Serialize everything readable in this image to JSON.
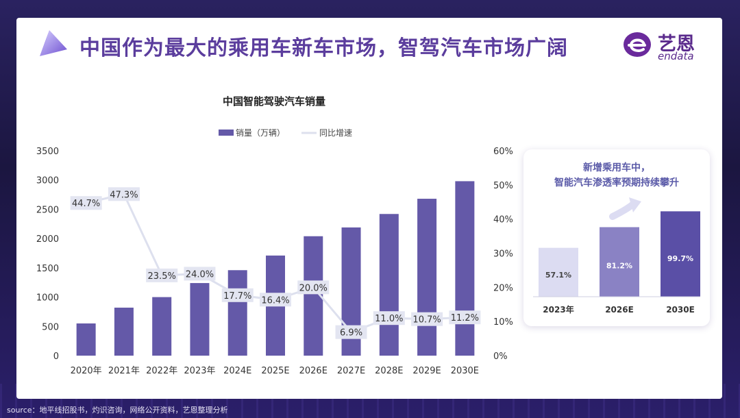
{
  "slide": {
    "title": "中国作为最大的乘用车新车市场，智驾汽车市场广阔",
    "logo_cn": "艺恩",
    "logo_en": "endata",
    "source": "source：地平线招股书，灼识咨询，网络公开资料，艺恩整理分析"
  },
  "colors": {
    "bar": "#6459a8",
    "line": "#dde0ee",
    "label_bg": "#e3e5f1",
    "title": "#5b3d9d",
    "axis_text": "#333333",
    "inset_bar_light": "#dcdcf2",
    "inset_bar_mid": "#8a82c4",
    "inset_bar_dark": "#5a4fa6"
  },
  "chart_data": [
    {
      "type": "bar",
      "title": "中国智能驾驶汽车销量",
      "categories": [
        "2020年",
        "2021年",
        "2022年",
        "2023年",
        "2024E",
        "2025E",
        "2026E",
        "2027E",
        "2028E",
        "2029E",
        "2030E"
      ],
      "series": [
        {
          "name": "销量（万辆）",
          "type": "bar",
          "axis": "left",
          "values": [
            550,
            820,
            1000,
            1240,
            1460,
            1710,
            2040,
            2190,
            2420,
            2680,
            2980
          ]
        },
        {
          "name": "同比增速",
          "type": "line",
          "axis": "right",
          "values": [
            44.7,
            47.3,
            23.5,
            24.0,
            17.7,
            16.4,
            20.0,
            6.9,
            11.0,
            10.7,
            11.2
          ],
          "labels": [
            "44.7%",
            "47.3%",
            "23.5%",
            "24.0%",
            "17.7%",
            "16.4%",
            "20.0%",
            "6.9%",
            "11.0%",
            "10.7%",
            "11.2%"
          ]
        }
      ],
      "ylim_left": [
        0,
        3500
      ],
      "yticks_left": [
        "0",
        "500",
        "1000",
        "1500",
        "2000",
        "2500",
        "3000",
        "3500"
      ],
      "ylim_right": [
        0,
        60
      ],
      "yticks_right": [
        "0%",
        "10%",
        "20%",
        "30%",
        "40%",
        "50%",
        "60%"
      ],
      "legend": [
        "销量（万辆）",
        "同比增速"
      ],
      "legend_position": "top"
    },
    {
      "type": "bar",
      "title_lines": [
        "新增乘用车中，",
        "智能汽车渗透率预期持续攀升"
      ],
      "categories": [
        "2023年",
        "2026E",
        "2030E"
      ],
      "values": [
        57.1,
        81.2,
        99.7
      ],
      "labels": [
        "57.1%",
        "81.2%",
        "99.7%"
      ]
    }
  ]
}
